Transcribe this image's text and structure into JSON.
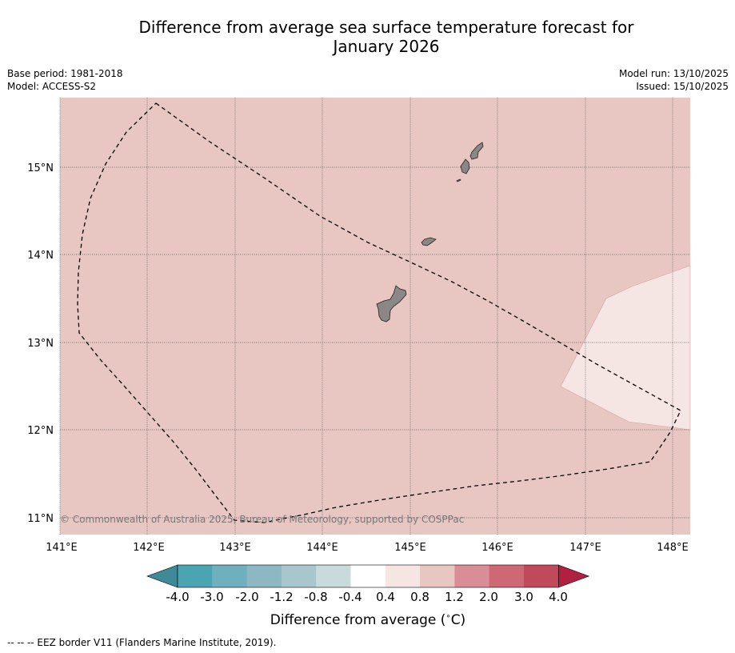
{
  "title_line1": "Difference from average sea surface temperature forecast for",
  "title_line2": "January 2026",
  "base_period": "Base period: 1981-2018",
  "model": "Model: ACCESS-S2",
  "model_run": "Model run: 13/10/2025",
  "issued": "Issued: 15/10/2025",
  "copyright": "© Commonwealth of Australia 2025, Bureau of Meteorology, supported by COSPPac",
  "footer": "--  --  -- EEZ border V11 (Flanders Marine Institute, 2019).",
  "lon_labels": [
    "141°E",
    "142°E",
    "143°E",
    "144°E",
    "145°E",
    "146°E",
    "147°E",
    "148°E"
  ],
  "lat_labels": [
    "15°N",
    "14°N",
    "13°N",
    "12°N",
    "11°N"
  ],
  "colorbar": {
    "label": "Difference from average (",
    "unit": "∘",
    "unit_tail": "C)",
    "ticks": [
      "-4.0",
      "-3.0",
      "-2.0",
      "-1.2",
      "-0.8",
      "-0.4",
      "0.4",
      "0.8",
      "1.2",
      "2.0",
      "3.0",
      "4.0"
    ],
    "colors": [
      "#3e8a96",
      "#4aa4b2",
      "#6eb0be",
      "#8db7c2",
      "#a8c7cc",
      "#c9dadd",
      "#ffffff",
      "#f5e6e4",
      "#e8c6c2",
      "#d98d96",
      "#cd6874",
      "#c14a5a",
      "#b02040"
    ]
  },
  "map_colors": {
    "background_anomaly": "#e8c6c2",
    "cool_patch": "#f5e6e4",
    "land": "#8b8785"
  }
}
